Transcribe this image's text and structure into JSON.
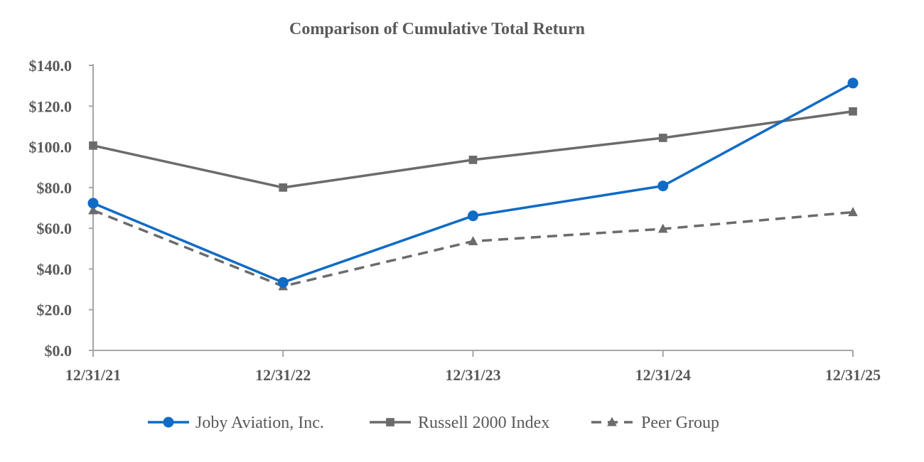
{
  "chart_data": {
    "type": "line",
    "title": "Comparison of Cumulative Total Return",
    "xlabel": "",
    "ylabel": "",
    "categories": [
      "12/31/21",
      "12/31/22",
      "12/31/23",
      "12/31/24",
      "12/31/25"
    ],
    "ylim": [
      0,
      140
    ],
    "yticks": [
      "$0.0",
      "$20.0",
      "$40.0",
      "$60.0",
      "$80.0",
      "$100.0",
      "$120.0",
      "$140.0"
    ],
    "ytick_values": [
      0,
      20,
      40,
      60,
      80,
      100,
      120,
      140
    ],
    "grid": false,
    "legend_position": "bottom",
    "series": [
      {
        "name": "Joby Aviation, Inc.",
        "values": [
          72.3,
          33.4,
          66.1,
          80.8,
          131.3
        ],
        "color": "#0F6BC6",
        "marker": "circle",
        "dash": "solid"
      },
      {
        "name": "Russell 2000 Index",
        "values": [
          100.6,
          80.0,
          93.6,
          104.4,
          117.4
        ],
        "color": "#6B6B6B",
        "marker": "square",
        "dash": "solid"
      },
      {
        "name": "Peer Group",
        "values": [
          68.8,
          31.5,
          53.6,
          59.7,
          67.9
        ],
        "color": "#6B6B6B",
        "marker": "triangle",
        "dash": "dashed"
      }
    ]
  }
}
